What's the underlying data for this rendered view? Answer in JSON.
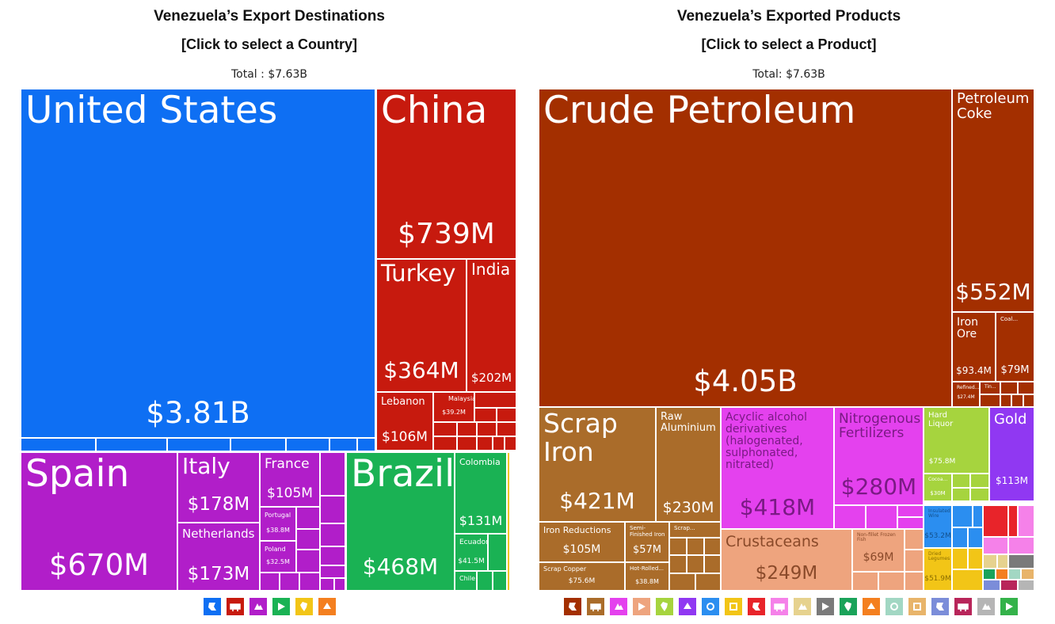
{
  "chart_data": [
    {
      "type": "treemap",
      "title": "Venezuela’s Export Destinations",
      "subtitle": "[Click to select a Country]",
      "total_label": "Total : $7.63B",
      "leaves": [
        {
          "label": "United States",
          "value_label": "$3.81B",
          "value_musd": 3810,
          "color": "#0e6ff3"
        },
        {
          "label": "China",
          "value_label": "$739M",
          "value_musd": 739,
          "color": "#c71a0e"
        },
        {
          "label": "Turkey",
          "value_label": "$364M",
          "value_musd": 364,
          "color": "#c71a0e"
        },
        {
          "label": "India",
          "value_label": "$202M",
          "value_musd": 202,
          "color": "#c71a0e"
        },
        {
          "label": "Lebanon",
          "value_label": "$106M",
          "value_musd": 106,
          "color": "#c71a0e"
        },
        {
          "label": "Malaysia",
          "value_label": "$39.2M",
          "value_musd": 39.2,
          "color": "#c71a0e"
        },
        {
          "label": "Spain",
          "value_label": "$670M",
          "value_musd": 670,
          "color": "#b11ec9"
        },
        {
          "label": "Italy",
          "value_label": "$178M",
          "value_musd": 178,
          "color": "#b11ec9"
        },
        {
          "label": "France",
          "value_label": "$105M",
          "value_musd": 105,
          "color": "#b11ec9"
        },
        {
          "label": "Netherlands",
          "value_label": "$173M",
          "value_musd": 173,
          "color": "#b11ec9"
        },
        {
          "label": "Portugal",
          "value_label": "$38.8M",
          "value_musd": 38.8,
          "color": "#b11ec9"
        },
        {
          "label": "Poland",
          "value_label": "$32.5M",
          "value_musd": 32.5,
          "color": "#b11ec9"
        },
        {
          "label": "Brazil",
          "value_label": "$468M",
          "value_musd": 468,
          "color": "#1ab254"
        },
        {
          "label": "Colombia",
          "value_label": "$131M",
          "value_musd": 131,
          "color": "#1ab254"
        },
        {
          "label": "Ecuador",
          "value_label": "$41.5M",
          "value_musd": 41.5,
          "color": "#1ab254"
        },
        {
          "label": "Chile",
          "value_label": "",
          "value_musd": null,
          "color": "#1ab254"
        }
      ]
    },
    {
      "type": "treemap",
      "title": "Venezuela’s Exported Products",
      "subtitle": "[Click to select a Product]",
      "total_label": "Total: $7.63B",
      "leaves": [
        {
          "label": "Crude Petroleum",
          "value_label": "$4.05B",
          "value_musd": 4050,
          "color": "#a32f00"
        },
        {
          "label": "Petroleum Coke",
          "value_label": "$552M",
          "value_musd": 552,
          "color": "#a32f00"
        },
        {
          "label": "Iron Ore",
          "value_label": "$93.4M",
          "value_musd": 93.4,
          "color": "#a32f00"
        },
        {
          "label": "Coal...",
          "value_label": "$79M",
          "value_musd": 79,
          "color": "#a32f00"
        },
        {
          "label": "Refined...",
          "value_label": "$27.4M",
          "value_musd": 27.4,
          "color": "#a32f00"
        },
        {
          "label": "Tin...",
          "value_label": "",
          "value_musd": null,
          "color": "#a32f00"
        },
        {
          "label": "Scrap Iron",
          "value_label": "$421M",
          "value_musd": 421,
          "color": "#aa6c2a"
        },
        {
          "label": "Raw Aluminium",
          "value_label": "$230M",
          "value_musd": 230,
          "color": "#aa6c2a"
        },
        {
          "label": "Iron Reductions",
          "value_label": "$105M",
          "value_musd": 105,
          "color": "#aa6c2a"
        },
        {
          "label": "Semi-Finished Iron",
          "value_label": "$57M",
          "value_musd": 57,
          "color": "#aa6c2a"
        },
        {
          "label": "Scrap...",
          "value_label": "",
          "value_musd": null,
          "color": "#aa6c2a"
        },
        {
          "label": "Scrap Copper",
          "value_label": "$75.6M",
          "value_musd": 75.6,
          "color": "#aa6c2a"
        },
        {
          "label": "Hot-Rolled...",
          "value_label": "$38.8M",
          "value_musd": 38.8,
          "color": "#aa6c2a"
        },
        {
          "label": "Acyclic alcohol derivatives (halogenated, sulphonated, nitrated)",
          "value_label": "$418M",
          "value_musd": 418,
          "color": "#e441ee"
        },
        {
          "label": "Nitrogenous Fertilizers",
          "value_label": "$280M",
          "value_musd": 280,
          "color": "#e441ee"
        },
        {
          "label": "Crustaceans",
          "value_label": "$249M",
          "value_musd": 249,
          "color": "#eea47e"
        },
        {
          "label": "Non-fillet Frozen Fish",
          "value_label": "$69M",
          "value_musd": 69,
          "color": "#eea47e"
        },
        {
          "label": "Hard Liquor",
          "value_label": "$75.8M",
          "value_musd": 75.8,
          "color": "#a6d43e"
        },
        {
          "label": "Cocoa...",
          "value_label": "$30M",
          "value_musd": 30,
          "color": "#a6d43e"
        },
        {
          "label": "Gold",
          "value_label": "$113M",
          "value_musd": 113,
          "color": "#9038f2"
        },
        {
          "label": "Insulated Wire",
          "value_label": "$53.2M",
          "value_musd": 53.2,
          "color": "#2b8ef0"
        },
        {
          "label": "Dried Legumes",
          "value_label": "$51.9M",
          "value_musd": 51.9,
          "color": "#f2c517"
        }
      ]
    }
  ],
  "legend_icons_left": [
    {
      "name": "north-america-icon",
      "color": "#0e6ff3"
    },
    {
      "name": "asia-icon",
      "color": "#c71a0e"
    },
    {
      "name": "europe-icon",
      "color": "#b11ec9"
    },
    {
      "name": "south-america-icon",
      "color": "#1ab254"
    },
    {
      "name": "africa-icon",
      "color": "#f2c517"
    },
    {
      "name": "oceania-icon",
      "color": "#f47f1f"
    }
  ],
  "legend_icons_right": [
    {
      "name": "mineral-products-icon",
      "color": "#a32f00"
    },
    {
      "name": "metals-icon",
      "color": "#aa6c2a"
    },
    {
      "name": "chemical-products-icon",
      "color": "#e441ee"
    },
    {
      "name": "animal-products-icon",
      "color": "#eea47e"
    },
    {
      "name": "vegetable-products-icon",
      "color": "#a6d43e"
    },
    {
      "name": "precious-metals-icon",
      "color": "#9038f2"
    },
    {
      "name": "machines-icon",
      "color": "#2b8ef0"
    },
    {
      "name": "foodstuffs-icon",
      "color": "#f2c517"
    },
    {
      "name": "plastics-rubbers-icon",
      "color": "#e8242a"
    },
    {
      "name": "paper-goods-icon",
      "color": "#f581e9"
    },
    {
      "name": "wood-products-icon",
      "color": "#e6d28e"
    },
    {
      "name": "instruments-icon",
      "color": "#7a7a7a"
    },
    {
      "name": "textiles-icon",
      "color": "#1aa35a"
    },
    {
      "name": "animal-hides-icon",
      "color": "#f47f1f"
    },
    {
      "name": "stone-and-glass-icon",
      "color": "#a2d7c3"
    },
    {
      "name": "miscellaneous-icon",
      "color": "#e8b46a"
    },
    {
      "name": "transportation-icon",
      "color": "#7b8dd9"
    },
    {
      "name": "weapons-icon",
      "color": "#b8255a"
    },
    {
      "name": "arts-and-antiques-icon",
      "color": "#b5b5b5"
    },
    {
      "name": "footwear-icon",
      "color": "#34b24a"
    }
  ]
}
